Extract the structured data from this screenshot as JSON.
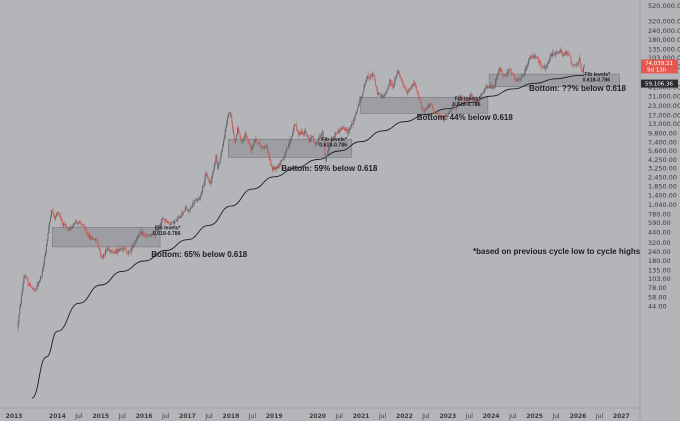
{
  "chart_data": {
    "type": "candlestick",
    "y_scale": "log",
    "ylim": [
      2,
      520000
    ],
    "xlim": [
      "2013-01-01",
      "2027-02-01"
    ],
    "grid": false,
    "colors": {
      "background": "#b4b5b9",
      "up": "#5f6168",
      "down": "#c95a54",
      "moving_average": "#1e1e22",
      "zone_fill": "#96979c",
      "zone_stroke": "#6d6e73",
      "price_tag_red": "#e8574d",
      "price_tag_dark": "#2b2b30"
    },
    "y_tick_labels": [
      "520,000.00",
      "320,000.00",
      "240,000.00",
      "180,000.00",
      "135,000.00",
      "103,000.00",
      "78,000.00",
      "41,000.00",
      "31,000.00",
      "23,000.00",
      "17,000.00",
      "13,000.00",
      "9,800.00",
      "7,400.00",
      "5,600.00",
      "4,250.00",
      "3,250.00",
      "2,450.00",
      "1,850.00",
      "1,400.00",
      "1,040.00",
      "780.00",
      "590.00",
      "440.00",
      "320.00",
      "240.00",
      "180.00",
      "135.00",
      "103.00",
      "78.00",
      "58.00",
      "44.00"
    ],
    "x_tick_labels": [
      {
        "label": "2013",
        "date": "2013-01-01",
        "year": true
      },
      {
        "label": "2014",
        "date": "2014-01-01",
        "year": true
      },
      {
        "label": "Jul",
        "date": "2014-07-01",
        "year": false
      },
      {
        "label": "2015",
        "date": "2015-01-01",
        "year": true
      },
      {
        "label": "Jul",
        "date": "2015-07-01",
        "year": false
      },
      {
        "label": "2016",
        "date": "2016-01-01",
        "year": true
      },
      {
        "label": "Jul",
        "date": "2016-07-01",
        "year": false
      },
      {
        "label": "2017",
        "date": "2017-01-01",
        "year": true
      },
      {
        "label": "Jul",
        "date": "2017-07-01",
        "year": false
      },
      {
        "label": "2018",
        "date": "2018-01-01",
        "year": true
      },
      {
        "label": "Jul",
        "date": "2018-07-01",
        "year": false
      },
      {
        "label": "2019",
        "date": "2019-01-01",
        "year": true
      },
      {
        "label": "2020",
        "date": "2020-01-01",
        "year": true
      },
      {
        "label": "Jul",
        "date": "2020-07-01",
        "year": false
      },
      {
        "label": "2021",
        "date": "2021-01-01",
        "year": true
      },
      {
        "label": "Jul",
        "date": "2021-07-01",
        "year": false
      },
      {
        "label": "2022",
        "date": "2022-01-01",
        "year": true
      },
      {
        "label": "Jul",
        "date": "2022-07-01",
        "year": false
      },
      {
        "label": "2023",
        "date": "2023-01-01",
        "year": true
      },
      {
        "label": "Jul",
        "date": "2023-07-01",
        "year": false
      },
      {
        "label": "2024",
        "date": "2024-01-01",
        "year": true
      },
      {
        "label": "Jul",
        "date": "2024-07-01",
        "year": false
      },
      {
        "label": "2025",
        "date": "2025-01-01",
        "year": true
      },
      {
        "label": "Jul",
        "date": "2025-07-01",
        "year": false
      },
      {
        "label": "2026",
        "date": "2026-01-01",
        "year": true
      },
      {
        "label": "Jul",
        "date": "2026-07-01",
        "year": false
      },
      {
        "label": "2027",
        "date": "2027-01-01",
        "year": true
      }
    ],
    "price_path": [
      [
        "2013-02-01",
        22
      ],
      [
        "2013-04-01",
        120
      ],
      [
        "2013-05-01",
        90
      ],
      [
        "2013-07-01",
        70
      ],
      [
        "2013-09-01",
        125
      ],
      [
        "2013-11-15",
        900
      ],
      [
        "2013-12-15",
        680
      ],
      [
        "2014-01-10",
        850
      ],
      [
        "2014-02-20",
        580
      ],
      [
        "2014-04-10",
        450
      ],
      [
        "2014-06-01",
        620
      ],
      [
        "2014-08-01",
        560
      ],
      [
        "2014-10-01",
        380
      ],
      [
        "2014-12-01",
        340
      ],
      [
        "2015-01-15",
        200
      ],
      [
        "2015-03-01",
        270
      ],
      [
        "2015-05-01",
        235
      ],
      [
        "2015-07-01",
        275
      ],
      [
        "2015-09-01",
        230
      ],
      [
        "2015-11-10",
        390
      ],
      [
        "2015-12-20",
        430
      ],
      [
        "2016-02-01",
        380
      ],
      [
        "2016-04-01",
        420
      ],
      [
        "2016-06-15",
        680
      ],
      [
        "2016-08-01",
        580
      ],
      [
        "2016-10-01",
        620
      ],
      [
        "2016-12-25",
        960
      ],
      [
        "2017-01-10",
        820
      ],
      [
        "2017-03-01",
        1150
      ],
      [
        "2017-04-15",
        1250
      ],
      [
        "2017-06-10",
        2700
      ],
      [
        "2017-07-15",
        2000
      ],
      [
        "2017-09-01",
        4800
      ],
      [
        "2017-09-15",
        3200
      ],
      [
        "2017-11-01",
        7200
      ],
      [
        "2017-12-17",
        19500
      ],
      [
        "2018-01-05",
        16500
      ],
      [
        "2018-02-06",
        7000
      ],
      [
        "2018-03-05",
        11500
      ],
      [
        "2018-04-05",
        6800
      ],
      [
        "2018-05-05",
        9700
      ],
      [
        "2018-06-25",
        5900
      ],
      [
        "2018-07-25",
        8200
      ],
      [
        "2018-09-15",
        6400
      ],
      [
        "2018-11-01",
        6400
      ],
      [
        "2018-12-15",
        3200
      ],
      [
        "2019-02-05",
        3450
      ],
      [
        "2019-04-10",
        5200
      ],
      [
        "2019-05-30",
        8600
      ],
      [
        "2019-06-26",
        13500
      ],
      [
        "2019-07-20",
        9800
      ],
      [
        "2019-09-20",
        10100
      ],
      [
        "2019-10-25",
        7600
      ],
      [
        "2019-11-15",
        9200
      ],
      [
        "2019-12-18",
        6600
      ],
      [
        "2020-02-13",
        10300
      ],
      [
        "2020-03-13",
        4200
      ],
      [
        "2020-04-15",
        7000
      ],
      [
        "2020-06-01",
        9600
      ],
      [
        "2020-08-01",
        11600
      ],
      [
        "2020-09-10",
        10200
      ],
      [
        "2020-11-01",
        14000
      ],
      [
        "2020-12-30",
        29000
      ],
      [
        "2021-01-12",
        33000
      ],
      [
        "2021-02-20",
        55000
      ],
      [
        "2021-03-15",
        57000
      ],
      [
        "2021-04-14",
        64000
      ],
      [
        "2021-05-19",
        35000
      ],
      [
        "2021-06-22",
        31000
      ],
      [
        "2021-07-20",
        30500
      ],
      [
        "2021-09-05",
        50000
      ],
      [
        "2021-09-28",
        41000
      ],
      [
        "2021-11-10",
        68000
      ],
      [
        "2021-12-15",
        47000
      ],
      [
        "2022-01-24",
        35000
      ],
      [
        "2022-03-28",
        47000
      ],
      [
        "2022-05-12",
        27000
      ],
      [
        "2022-06-18",
        19000
      ],
      [
        "2022-08-15",
        24500
      ],
      [
        "2022-09-20",
        18500
      ],
      [
        "2022-11-09",
        16000
      ],
      [
        "2022-12-30",
        16500
      ],
      [
        "2023-02-15",
        24500
      ],
      [
        "2023-03-10",
        20000
      ],
      [
        "2023-04-14",
        30500
      ],
      [
        "2023-06-15",
        25000
      ],
      [
        "2023-07-14",
        31500
      ],
      [
        "2023-09-11",
        25000
      ],
      [
        "2023-10-25",
        35000
      ],
      [
        "2023-12-08",
        44000
      ],
      [
        "2024-01-23",
        39000
      ],
      [
        "2024-03-14",
        73000
      ],
      [
        "2024-05-01",
        57000
      ],
      [
        "2024-06-07",
        71000
      ],
      [
        "2024-08-05",
        49500
      ],
      [
        "2024-09-07",
        52500
      ],
      [
        "2024-10-15",
        67000
      ],
      [
        "2024-11-22",
        99000
      ],
      [
        "2024-12-17",
        108000
      ],
      [
        "2025-01-21",
        109000
      ],
      [
        "2025-02-28",
        78000
      ],
      [
        "2025-04-07",
        74500
      ],
      [
        "2025-05-22",
        111000
      ],
      [
        "2025-07-14",
        123000
      ],
      [
        "2025-08-14",
        124000
      ],
      [
        "2025-09-01",
        108000
      ],
      [
        "2025-10-06",
        126000
      ],
      [
        "2025-11-21",
        81000
      ],
      [
        "2025-12-20",
        86000
      ],
      [
        "2026-01-15",
        97000
      ],
      [
        "2026-02-05",
        63000
      ],
      [
        "2026-02-20",
        74000
      ]
    ],
    "moving_average": [
      [
        "2013-06-01",
        2.5
      ],
      [
        "2013-10-01",
        9
      ],
      [
        "2014-01-01",
        20
      ],
      [
        "2014-07-01",
        48
      ],
      [
        "2015-01-01",
        85
      ],
      [
        "2015-07-01",
        130
      ],
      [
        "2016-01-01",
        180
      ],
      [
        "2016-07-01",
        250
      ],
      [
        "2017-01-01",
        350
      ],
      [
        "2017-07-01",
        550
      ],
      [
        "2018-01-01",
        1000
      ],
      [
        "2018-07-01",
        1700
      ],
      [
        "2019-01-01",
        2500
      ],
      [
        "2019-07-01",
        3300
      ],
      [
        "2020-01-01",
        4300
      ],
      [
        "2020-07-01",
        5600
      ],
      [
        "2021-01-01",
        7500
      ],
      [
        "2021-07-01",
        10500
      ],
      [
        "2022-01-01",
        14000
      ],
      [
        "2022-07-01",
        17500
      ],
      [
        "2023-01-01",
        21000
      ],
      [
        "2023-07-01",
        25500
      ],
      [
        "2024-01-01",
        31000
      ],
      [
        "2024-07-01",
        39000
      ],
      [
        "2025-01-01",
        46500
      ],
      [
        "2025-07-01",
        53500
      ],
      [
        "2026-01-01",
        59000
      ],
      [
        "2026-02-20",
        59106
      ]
    ],
    "fib_zones": [
      {
        "x0": "2013-11-20",
        "x1": "2016-05-15",
        "y0": 280,
        "y1": 515
      },
      {
        "x0": "2017-12-10",
        "x1": "2020-10-15",
        "y0": 4600,
        "y1": 8100
      },
      {
        "x0": "2020-12-25",
        "x1": "2023-12-05",
        "y0": 18200,
        "y1": 30100
      },
      {
        "x0": "2023-12-15",
        "x1": "2026-12-15",
        "y0": 42000,
        "y1": 62000
      }
    ],
    "annotations": [
      {
        "id": "bottom-1",
        "text": "Bottom: 65% below 0.618",
        "date": "2016-03-01",
        "value": 205
      },
      {
        "id": "bottom-2",
        "text": "Bottom: 59% below 0.618",
        "date": "2019-03-01",
        "value": 2980
      },
      {
        "id": "bottom-3",
        "text": "Bottom: 44% below 0.618",
        "date": "2022-04-15",
        "value": 14700
      },
      {
        "id": "bottom-4",
        "text": "Bottom: ??% below 0.618",
        "date": "2024-11-15",
        "value": 36500
      },
      {
        "id": "footnote",
        "text": "*based on previous cycle low to cycle highs",
        "date": "2023-08-01",
        "value": 225
      }
    ],
    "fib_labels": [
      {
        "line1": "Fib levels*",
        "line2": "0.618-0.786",
        "date": "2016-04-01",
        "value": 480
      },
      {
        "line1": "Fib levels*",
        "line2": "0.618-0.786",
        "date": "2020-02-01",
        "value": 7700
      },
      {
        "line1": "Fib levels*",
        "line2": "0.618-0.786",
        "date": "2023-03-01",
        "value": 27000
      },
      {
        "line1": "Fib levels*",
        "line2": "0.618-0.786",
        "date": "2026-02-25",
        "value": 58000
      }
    ],
    "price_tags": {
      "last_price": "74,039.21",
      "countdown": "9d 13h",
      "ma_value": "59,106.36"
    }
  }
}
